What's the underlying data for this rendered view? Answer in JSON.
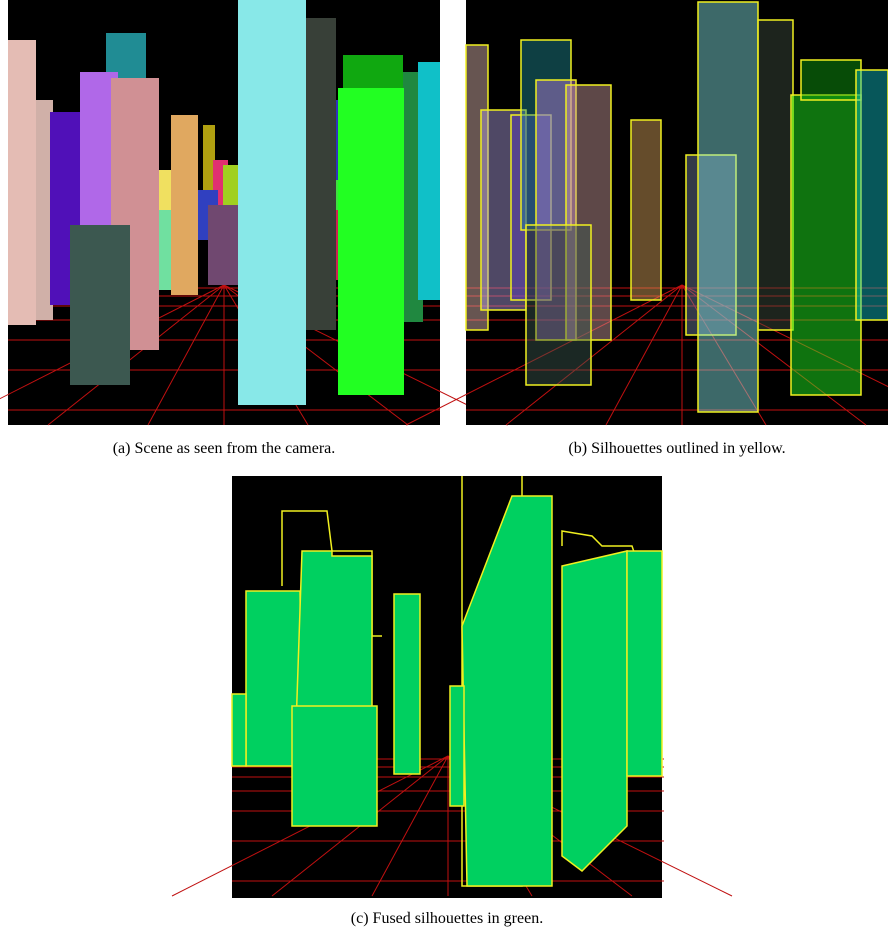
{
  "figure": {
    "subfigures": [
      {
        "caption": "(a) Scene as seen from the camera."
      },
      {
        "caption": "(b) Silhouettes outlined in yellow."
      },
      {
        "caption": "(c) Fused silhouettes in green."
      }
    ]
  }
}
